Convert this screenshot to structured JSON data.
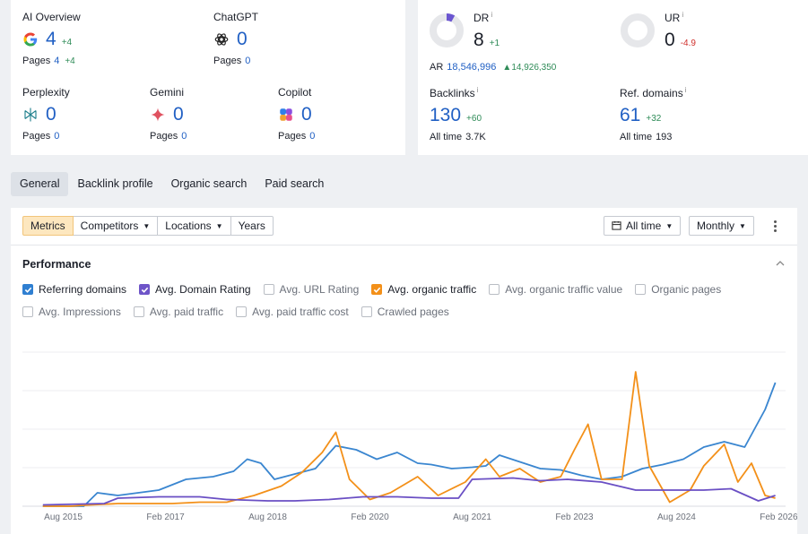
{
  "ai": {
    "overview": {
      "label": "AI Overview",
      "value": "4",
      "delta": "+4",
      "pages_label": "Pages",
      "pages": "4",
      "pages_delta": "+4",
      "icon": "google-icon"
    },
    "chatgpt": {
      "label": "ChatGPT",
      "value": "0",
      "pages_label": "Pages",
      "pages": "0",
      "icon": "chatgpt-icon"
    },
    "perplexity": {
      "label": "Perplexity",
      "value": "0",
      "pages_label": "Pages",
      "pages": "0",
      "icon": "perplexity-icon"
    },
    "gemini": {
      "label": "Gemini",
      "value": "0",
      "pages_label": "Pages",
      "pages": "0",
      "icon": "gemini-icon"
    },
    "copilot": {
      "label": "Copilot",
      "value": "0",
      "pages_label": "Pages",
      "pages": "0",
      "icon": "copilot-icon"
    }
  },
  "seo": {
    "dr": {
      "label": "DR",
      "info": "i",
      "value": "8",
      "delta": "+1",
      "ar_label": "AR",
      "ar": "18,546,996",
      "ar_delta": "14,926,350",
      "fill_fraction": 0.08
    },
    "ur": {
      "label": "UR",
      "info": "i",
      "value": "0",
      "delta": "-4.9",
      "fill_fraction": 0.0
    },
    "backlinks": {
      "label": "Backlinks",
      "info": "i",
      "value": "130",
      "delta": "+60",
      "sub_label": "All time",
      "sub": "3.7K"
    },
    "ref_domains": {
      "label": "Ref. domains",
      "info": "i",
      "value": "61",
      "delta": "+32",
      "sub_label": "All time",
      "sub": "193"
    }
  },
  "tabs": [
    "General",
    "Backlink profile",
    "Organic search",
    "Paid search"
  ],
  "toolbar": {
    "metrics": "Metrics",
    "competitors": "Competitors",
    "locations": "Locations",
    "years": "Years",
    "range": "All time",
    "interval": "Monthly"
  },
  "performance": {
    "title": "Performance",
    "checkboxes_row1": [
      {
        "label": "Referring domains",
        "checked": true,
        "color": "#2f7fd1"
      },
      {
        "label": "Avg. Domain Rating",
        "checked": true,
        "color": "#6e55c8"
      },
      {
        "label": "Avg. URL Rating",
        "checked": false
      },
      {
        "label": "Avg. organic traffic",
        "checked": true,
        "color": "#f39019"
      },
      {
        "label": "Avg. organic traffic value",
        "checked": false
      },
      {
        "label": "Organic pages",
        "checked": false
      }
    ],
    "checkboxes_row2": [
      {
        "label": "Avg. Impressions",
        "checked": false
      },
      {
        "label": "Avg. paid traffic",
        "checked": false
      },
      {
        "label": "Avg. paid traffic cost",
        "checked": false
      },
      {
        "label": "Crawled pages",
        "checked": false
      }
    ]
  },
  "chart_data": {
    "type": "line",
    "x_ticks": [
      "Aug 2015",
      "Feb 2017",
      "Aug 2018",
      "Feb 2020",
      "Aug 2021",
      "Feb 2023",
      "Aug 2024",
      "Feb 2026"
    ],
    "x_start": 2015.0,
    "x_end": 2026.2,
    "y_max": 1.0,
    "grid": true,
    "series": [
      {
        "name": "Referring domains",
        "color": "#3a86d0",
        "points": [
          [
            2015.3,
            0.0
          ],
          [
            2015.9,
            0.0
          ],
          [
            2016.1,
            0.1
          ],
          [
            2016.4,
            0.08
          ],
          [
            2016.7,
            0.1
          ],
          [
            2017.0,
            0.12
          ],
          [
            2017.4,
            0.2
          ],
          [
            2017.8,
            0.22
          ],
          [
            2018.1,
            0.26
          ],
          [
            2018.3,
            0.35
          ],
          [
            2018.5,
            0.32
          ],
          [
            2018.7,
            0.2
          ],
          [
            2019.0,
            0.24
          ],
          [
            2019.3,
            0.28
          ],
          [
            2019.6,
            0.45
          ],
          [
            2019.9,
            0.42
          ],
          [
            2020.2,
            0.35
          ],
          [
            2020.5,
            0.4
          ],
          [
            2020.8,
            0.32
          ],
          [
            2021.0,
            0.31
          ],
          [
            2021.3,
            0.28
          ],
          [
            2021.6,
            0.29
          ],
          [
            2021.8,
            0.3
          ],
          [
            2022.0,
            0.38
          ],
          [
            2022.3,
            0.33
          ],
          [
            2022.6,
            0.28
          ],
          [
            2022.9,
            0.27
          ],
          [
            2023.2,
            0.23
          ],
          [
            2023.5,
            0.2
          ],
          [
            2023.8,
            0.22
          ],
          [
            2024.1,
            0.28
          ],
          [
            2024.4,
            0.31
          ],
          [
            2024.7,
            0.35
          ],
          [
            2025.0,
            0.44
          ],
          [
            2025.3,
            0.48
          ],
          [
            2025.6,
            0.44
          ],
          [
            2025.9,
            0.72
          ],
          [
            2026.05,
            0.92
          ]
        ]
      },
      {
        "name": "Avg. organic traffic",
        "color": "#f39019",
        "points": [
          [
            2015.3,
            0.0
          ],
          [
            2015.7,
            0.0
          ],
          [
            2016.0,
            0.01
          ],
          [
            2016.4,
            0.02
          ],
          [
            2016.8,
            0.02
          ],
          [
            2017.2,
            0.02
          ],
          [
            2017.6,
            0.03
          ],
          [
            2018.0,
            0.03
          ],
          [
            2018.4,
            0.08
          ],
          [
            2018.8,
            0.15
          ],
          [
            2019.1,
            0.25
          ],
          [
            2019.4,
            0.4
          ],
          [
            2019.6,
            0.55
          ],
          [
            2019.8,
            0.2
          ],
          [
            2020.1,
            0.05
          ],
          [
            2020.4,
            0.1
          ],
          [
            2020.8,
            0.22
          ],
          [
            2021.1,
            0.08
          ],
          [
            2021.5,
            0.18
          ],
          [
            2021.8,
            0.35
          ],
          [
            2022.0,
            0.22
          ],
          [
            2022.3,
            0.28
          ],
          [
            2022.6,
            0.18
          ],
          [
            2022.9,
            0.22
          ],
          [
            2023.1,
            0.42
          ],
          [
            2023.3,
            0.61
          ],
          [
            2023.5,
            0.2
          ],
          [
            2023.8,
            0.2
          ],
          [
            2024.0,
            1.0
          ],
          [
            2024.2,
            0.3
          ],
          [
            2024.5,
            0.03
          ],
          [
            2024.8,
            0.12
          ],
          [
            2025.0,
            0.3
          ],
          [
            2025.3,
            0.46
          ],
          [
            2025.5,
            0.18
          ],
          [
            2025.7,
            0.32
          ],
          [
            2025.9,
            0.08
          ],
          [
            2026.05,
            0.06
          ]
        ]
      },
      {
        "name": "Avg. Domain Rating",
        "color": "#6a4fc4",
        "points": [
          [
            2015.3,
            0.01
          ],
          [
            2016.2,
            0.02
          ],
          [
            2016.4,
            0.06
          ],
          [
            2017.0,
            0.07
          ],
          [
            2017.6,
            0.07
          ],
          [
            2018.0,
            0.05
          ],
          [
            2018.6,
            0.04
          ],
          [
            2019.0,
            0.04
          ],
          [
            2019.5,
            0.05
          ],
          [
            2020.0,
            0.07
          ],
          [
            2020.5,
            0.07
          ],
          [
            2021.0,
            0.06
          ],
          [
            2021.4,
            0.06
          ],
          [
            2021.6,
            0.2
          ],
          [
            2022.2,
            0.21
          ],
          [
            2022.6,
            0.19
          ],
          [
            2023.0,
            0.2
          ],
          [
            2023.5,
            0.18
          ],
          [
            2024.0,
            0.12
          ],
          [
            2024.5,
            0.12
          ],
          [
            2025.0,
            0.12
          ],
          [
            2025.4,
            0.13
          ],
          [
            2025.8,
            0.04
          ],
          [
            2026.05,
            0.08
          ]
        ]
      }
    ]
  }
}
